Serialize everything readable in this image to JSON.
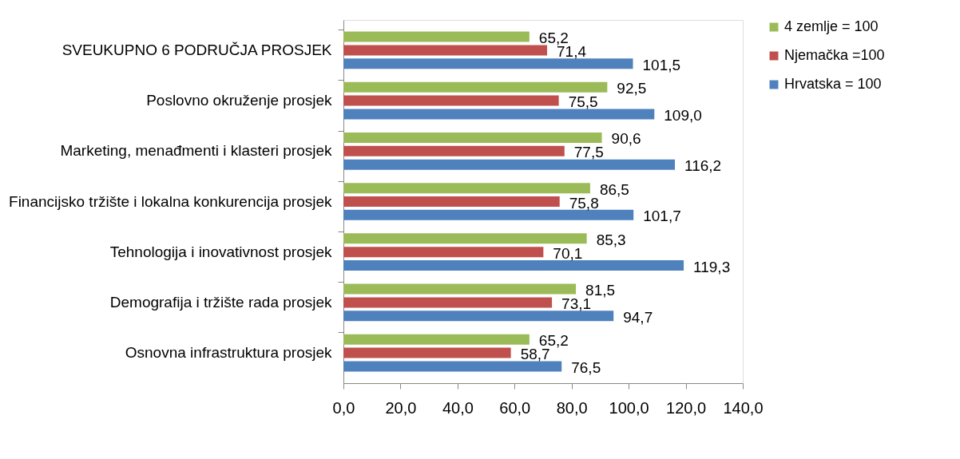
{
  "chart_data": {
    "type": "bar",
    "orientation": "horizontal",
    "categories": [
      "SVEUKUPNO 6 PODRUČJA PROSJEK",
      "Poslovno okruženje  prosjek",
      "Marketing, menađmenti i klasteri prosjek",
      "Financijsko tržište i lokalna konkurencija  prosjek",
      "Tehnologija i inovativnost  prosjek",
      "Demografija i tržište rada  prosjek",
      "Osnovna infrastruktura prosjek"
    ],
    "series": [
      {
        "name": "4 zemlje = 100",
        "color": "#9bbb59",
        "values": [
          65.2,
          92.5,
          90.6,
          86.5,
          85.3,
          81.5,
          65.2
        ],
        "value_labels": [
          "65,2",
          "92,5",
          "90,6",
          "86,5",
          "85,3",
          "81,5",
          "65,2"
        ]
      },
      {
        "name": "Njemačka =100",
        "color": "#c0504d",
        "values": [
          71.4,
          75.5,
          77.5,
          75.8,
          70.1,
          73.1,
          58.7
        ],
        "value_labels": [
          "71,4",
          "75,5",
          "77,5",
          "75,8",
          "70,1",
          "73,1",
          "58,7"
        ]
      },
      {
        "name": "Hrvatska = 100",
        "color": "#4f81bd",
        "values": [
          101.5,
          109.0,
          116.2,
          101.7,
          119.3,
          94.7,
          76.5
        ],
        "value_labels": [
          "101,5",
          "109,0",
          "116,2",
          "101,7",
          "119,3",
          "94,7",
          "76,5"
        ]
      }
    ],
    "xlim": [
      0,
      140
    ],
    "xticks": [
      {
        "value": 0,
        "label": "0,0"
      },
      {
        "value": 20,
        "label": "20,0"
      },
      {
        "value": 40,
        "label": "40,0"
      },
      {
        "value": 60,
        "label": "60,0"
      },
      {
        "value": 80,
        "label": "80,0"
      },
      {
        "value": 100,
        "label": "100,0"
      },
      {
        "value": 120,
        "label": "120,0"
      },
      {
        "value": 140,
        "label": "140,0"
      }
    ],
    "legend": "right",
    "grid": false
  }
}
